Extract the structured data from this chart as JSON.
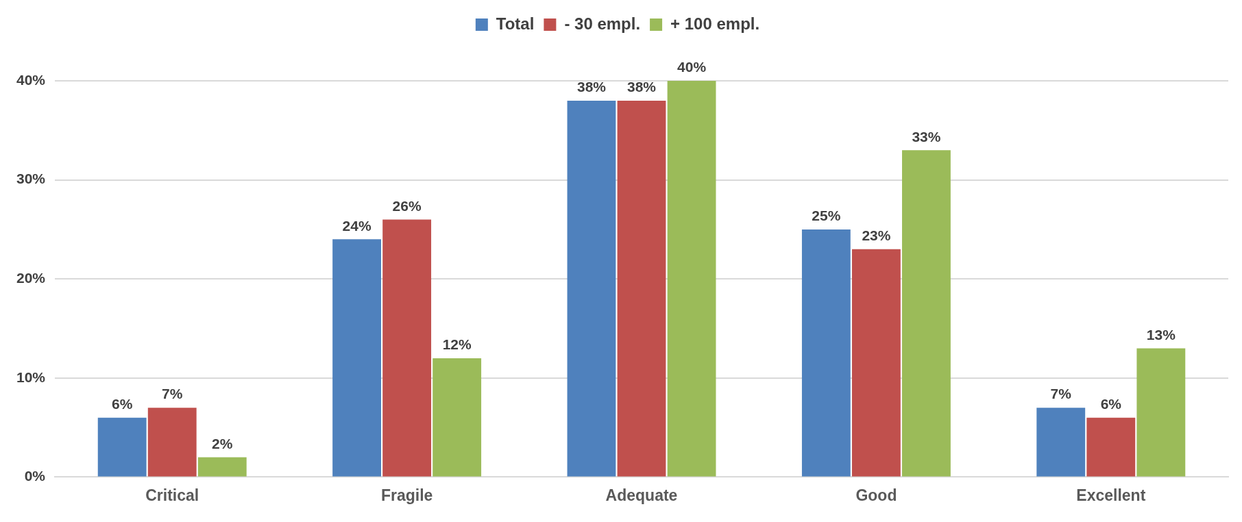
{
  "chart_data": {
    "type": "bar",
    "categories": [
      "Critical",
      "Fragile",
      "Adequate",
      "Good",
      "Excellent"
    ],
    "series": [
      {
        "name": "Total",
        "color": "#4f81bd",
        "values": [
          6,
          24,
          38,
          25,
          7
        ],
        "value_labels": [
          "6%",
          "24%",
          "38%",
          "25%",
          "7%"
        ]
      },
      {
        "name": "- 30 empl.",
        "color": "#c0504d",
        "values": [
          7,
          26,
          38,
          23,
          6
        ],
        "value_labels": [
          "7%",
          "26%",
          "38%",
          "23%",
          "6%"
        ]
      },
      {
        "name": "+ 100 empl.",
        "color": "#9bbb59",
        "values": [
          2,
          12,
          40,
          33,
          13
        ],
        "value_labels": [
          "2%",
          "12%",
          "40%",
          "33%",
          "13%"
        ]
      }
    ],
    "ylim": [
      0,
      40
    ],
    "yticks": [
      {
        "value": 0,
        "label": "0%"
      },
      {
        "value": 10,
        "label": "10%"
      },
      {
        "value": 20,
        "label": "20%"
      },
      {
        "value": 30,
        "label": "30%"
      },
      {
        "value": 40,
        "label": "40%"
      }
    ],
    "grid": "y",
    "legend": "top"
  }
}
